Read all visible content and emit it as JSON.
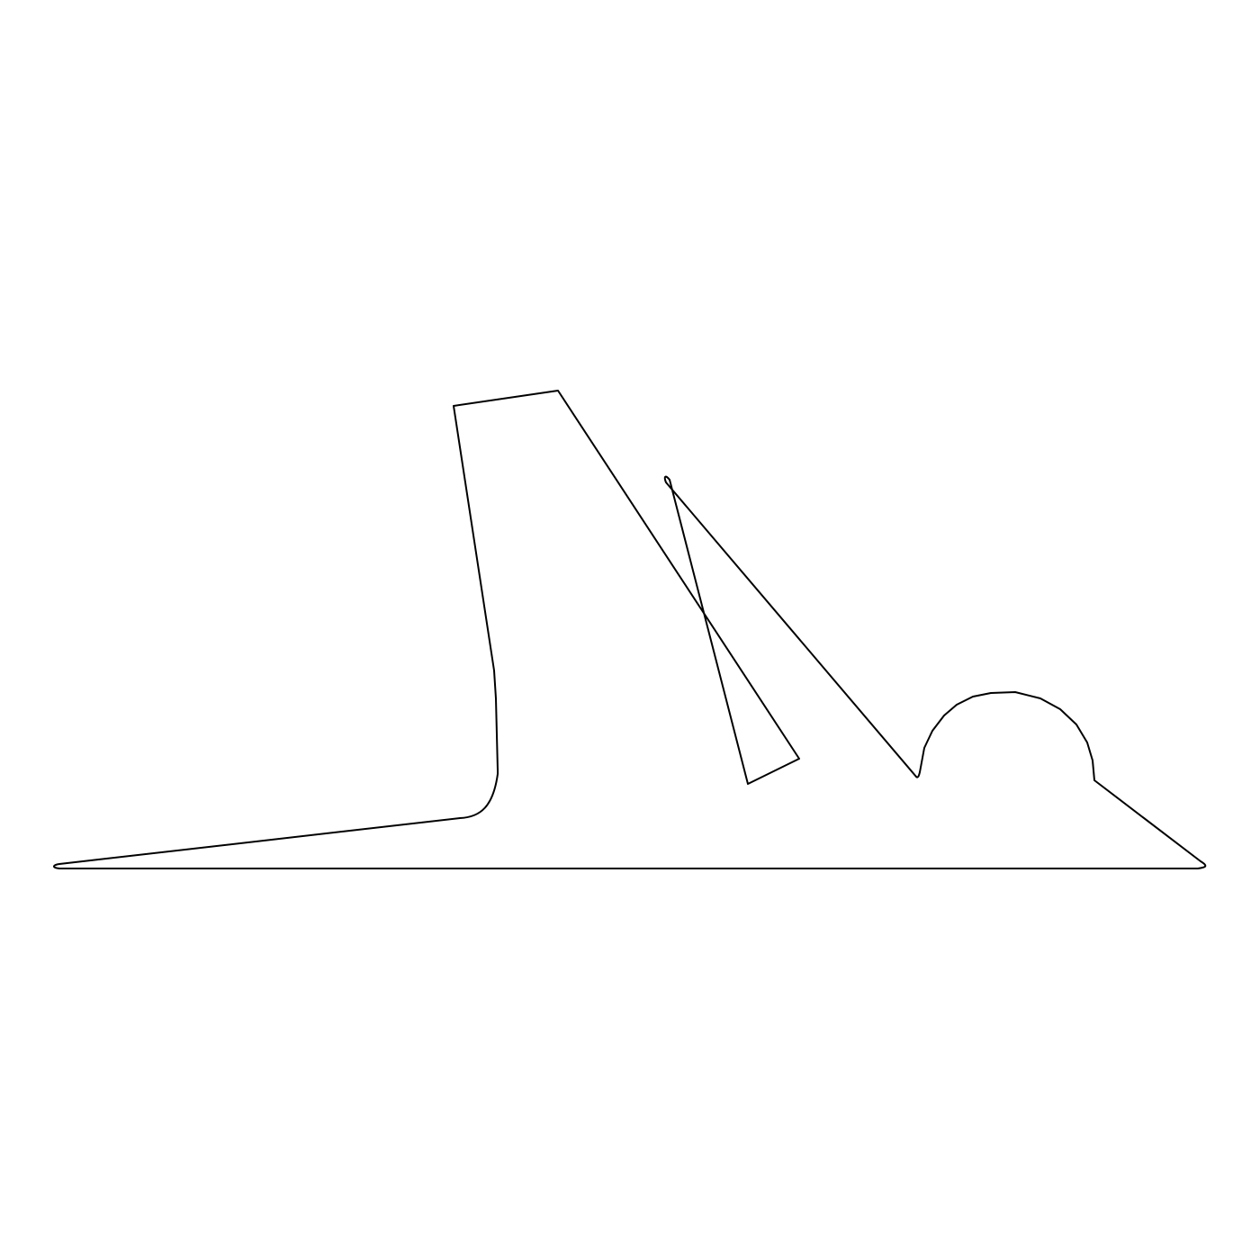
{
  "figure": {
    "kind": "tangram-style silhouette outline",
    "background_color": "#ffffff",
    "stroke_color": "#000000",
    "fill_color": "#ffffff"
  }
}
